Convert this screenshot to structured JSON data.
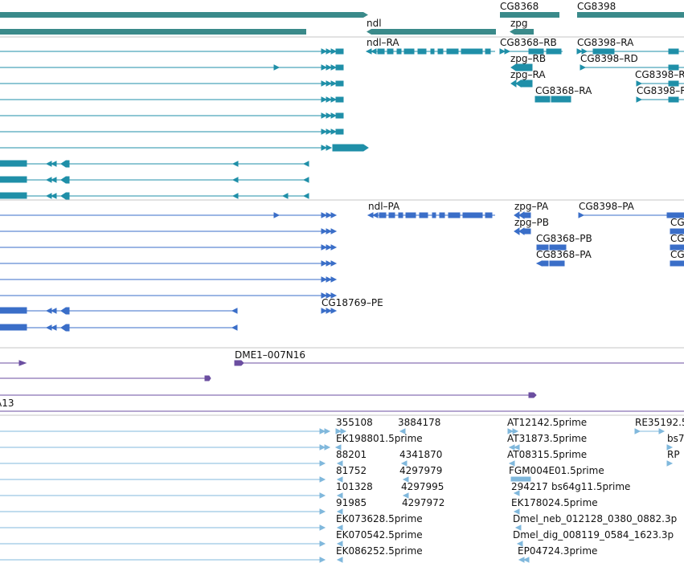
{
  "colors": {
    "gene": "#3a8a8a",
    "transcript_flybase": "#1f8fa8",
    "transcript_pred": "#3a6ec8",
    "clone": "#6b4ea0",
    "est": "#80b8dc",
    "separator": "#c4c4c4"
  },
  "gene_track": {
    "labels": {
      "ndl": "ndl",
      "zpg": "zpg",
      "cg8368": "CG8368",
      "cg8398": "CG8398"
    }
  },
  "transcript_track": {
    "labels": {
      "ndl_ra": "ndl–RA",
      "cg8368_rb": "CG8368–RB",
      "cg8398_ra": "CG8398–RA",
      "zpg_rb": "zpg–RB",
      "cg8398_rd": "CG8398–RD",
      "zpg_ra": "zpg–RA",
      "cg8398_r1": "CG8398–R",
      "cg8368_ra": "CG8368–RA",
      "cg8398_r2": "CG8398–R"
    }
  },
  "prediction_track": {
    "labels": {
      "ndl_pa": "ndl–PA",
      "zpg_pa": "zpg–PA",
      "cg8398_pa": "CG8398–PA",
      "zpg_pb": "zpg–PB",
      "cg_1": "CG",
      "cg8368_pb": "CG8368–PB",
      "cg_2": "CG",
      "cg8368_pa": "CG8368–PA",
      "cg_3": "CG",
      "cg18769_pe": "CG18769–PE"
    }
  },
  "clone_track": {
    "labels": {
      "dme1": "DME1–007N16",
      "a13": "A13"
    }
  },
  "est_track": {
    "labels": {
      "e355108": "355108",
      "e3884178": "3884178",
      "at12142": "AT12142.5prime",
      "re35192": "RE35192.5",
      "ek198801": "EK198801.5prime",
      "at31873": "AT31873.5prime",
      "bs7": "bs7",
      "e88201": "88201",
      "e4341870": "4341870",
      "at08315": "AT08315.5prime",
      "rp": "RP",
      "e81752": "81752",
      "e4297979": "4297979",
      "fgm004e01": "FGM004E01.5prime",
      "e101328": "101328",
      "e4297995": "4297995",
      "e294217": "294217",
      "bs64g11": "bs64g11.5prime",
      "e91985": "91985",
      "e4297972": "4297972",
      "ek178024": "EK178024.5prime",
      "ek073628": "EK073628.5prime",
      "dmel_neb": "Dmel_neb_012128_0380_0882.3p",
      "ek070542": "EK070542.5prime",
      "dmel_dig": "Dmel_dig_008119_0584_1623.3p",
      "ek086252": "EK086252.5prime",
      "ep04724": "EP04724.3prime"
    }
  }
}
